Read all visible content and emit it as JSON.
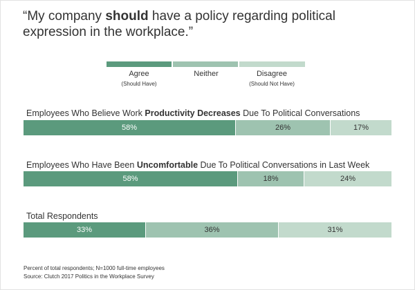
{
  "colors": {
    "agree": "#5b9a7d",
    "neither": "#9ec3b0",
    "disagree": "#c2dacc"
  },
  "title": {
    "prefix": "“My company ",
    "emphasis": "should",
    "suffix": " have a policy regarding political expression in the workplace.”"
  },
  "legend": [
    {
      "label": "Agree",
      "sub": "(Should Have)"
    },
    {
      "label": "Neither",
      "sub": ""
    },
    {
      "label": "Disagree",
      "sub": "(Should Not Have)"
    }
  ],
  "chart_data": {
    "type": "bar",
    "orientation": "horizontal-stacked",
    "title": "“My company should have a policy regarding political expression in the workplace.”",
    "series_names": [
      "Agree",
      "Neither",
      "Disagree"
    ],
    "unit": "%",
    "groups": [
      {
        "label_parts": [
          "Employees Who Believe Work ",
          "Productivity Decreases",
          " Due To Political Conversations"
        ],
        "values": [
          58,
          26,
          17
        ],
        "value_labels": [
          "58%",
          "26%",
          "17%"
        ]
      },
      {
        "label_parts": [
          "Employees Who Have Been ",
          "Uncomfortable",
          " Due To Political Conversations in Last Week"
        ],
        "values": [
          58,
          18,
          24
        ],
        "value_labels": [
          "58%",
          "18%",
          "24%"
        ]
      },
      {
        "label_parts": [
          "Total Respondents",
          "",
          ""
        ],
        "values": [
          33,
          36,
          31
        ],
        "value_labels": [
          "33%",
          "36%",
          "31%"
        ]
      }
    ]
  },
  "footnotes": [
    "Percent of total respondents; N=1000 full-time employees",
    "Source: Clutch 2017 Politics in the Workplace Survey"
  ]
}
